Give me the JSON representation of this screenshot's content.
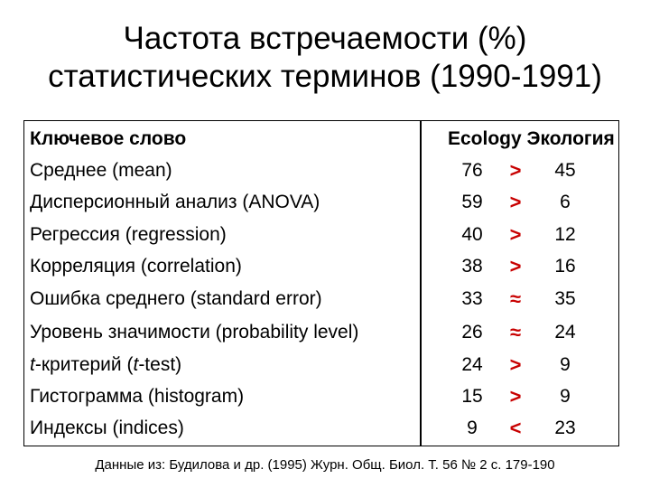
{
  "title": {
    "line1": "Частота встречаемости (%)",
    "line2": "статистических терминов (1990-1991)"
  },
  "table": {
    "headers": {
      "keyword": "Ключевое слово",
      "ecology_en": "Ecology",
      "ecology_ru": "Экология"
    },
    "rows": [
      {
        "keyword": "Среднее (mean)",
        "a": "76",
        "sign": ">",
        "b": "45"
      },
      {
        "keyword": "Дисперсионный анализ (ANOVA)",
        "a": "59",
        "sign": ">",
        "b": "6"
      },
      {
        "keyword": "Регрессия (regression)",
        "a": "40",
        "sign": ">",
        "b": "12"
      },
      {
        "keyword": "Корреляция (correlation)",
        "a": "38",
        "sign": ">",
        "b": "16"
      },
      {
        "keyword": "Ошибка среднего (standard error)",
        "a": "33",
        "sign": "≈",
        "b": "35"
      },
      {
        "keyword": "Уровень значимости (probability level)",
        "a": "26",
        "sign": "≈",
        "b": "24"
      },
      {
        "keyword_italic": "t",
        "keyword": "-критерий (",
        "keyword_italic2": "t",
        "keyword_tail": "-test)",
        "a": "24",
        "sign": ">",
        "b": "9"
      },
      {
        "keyword": "Гистограмма (histogram)",
        "a": "15",
        "sign": ">",
        "b": "9"
      },
      {
        "keyword": "Индексы (indices)",
        "a": "9",
        "sign": "<",
        "b": "23"
      }
    ]
  },
  "source": "Данные из: Будилова и др. (1995) Журн. Общ. Биол. Т. 56 № 2 с. 179-190",
  "colors": {
    "sign": "#c80000"
  }
}
